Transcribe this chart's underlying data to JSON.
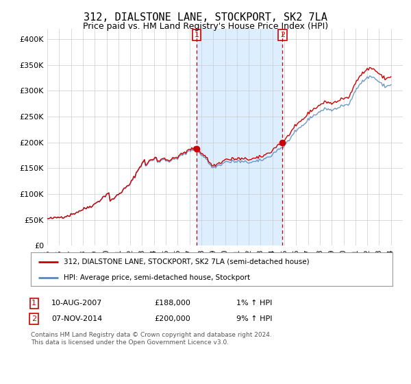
{
  "title": "312, DIALSTONE LANE, STOCKPORT, SK2 7LA",
  "subtitle": "Price paid vs. HM Land Registry's House Price Index (HPI)",
  "ylabel_ticks": [
    0,
    50000,
    100000,
    150000,
    200000,
    250000,
    300000,
    350000,
    400000
  ],
  "ylabel_labels": [
    "£0",
    "£50K",
    "£100K",
    "£150K",
    "£200K",
    "£250K",
    "£300K",
    "£350K",
    "£400K"
  ],
  "ylim": [
    0,
    420000
  ],
  "xlim_start": 1995,
  "xlim_end": 2025,
  "hpi_base": [
    [
      1995.0,
      52000
    ],
    [
      1995.1,
      52500
    ],
    [
      1995.2,
      52200
    ],
    [
      1995.3,
      52800
    ],
    [
      1995.4,
      53000
    ],
    [
      1995.5,
      53500
    ],
    [
      1995.6,
      53200
    ],
    [
      1995.7,
      54000
    ],
    [
      1995.8,
      54500
    ],
    [
      1995.9,
      54800
    ],
    [
      1996.0,
      55000
    ],
    [
      1996.1,
      55500
    ],
    [
      1996.2,
      55800
    ],
    [
      1996.3,
      56000
    ],
    [
      1996.4,
      56500
    ],
    [
      1996.5,
      57000
    ],
    [
      1996.6,
      57500
    ],
    [
      1996.7,
      58000
    ],
    [
      1996.8,
      58500
    ],
    [
      1996.9,
      59000
    ],
    [
      1997.0,
      60000
    ],
    [
      1997.1,
      61000
    ],
    [
      1997.2,
      62000
    ],
    [
      1997.3,
      63000
    ],
    [
      1997.4,
      64000
    ],
    [
      1997.5,
      65000
    ],
    [
      1997.6,
      66000
    ],
    [
      1997.7,
      67000
    ],
    [
      1997.8,
      68000
    ],
    [
      1997.9,
      69000
    ],
    [
      1998.0,
      70000
    ],
    [
      1998.1,
      71000
    ],
    [
      1998.2,
      72000
    ],
    [
      1998.3,
      73000
    ],
    [
      1998.4,
      74000
    ],
    [
      1998.5,
      75000
    ],
    [
      1998.6,
      76000
    ],
    [
      1998.7,
      77000
    ],
    [
      1998.8,
      78000
    ],
    [
      1998.9,
      79000
    ],
    [
      1999.0,
      80000
    ],
    [
      1999.1,
      82000
    ],
    [
      1999.2,
      84000
    ],
    [
      1999.3,
      86000
    ],
    [
      1999.4,
      87000
    ],
    [
      1999.5,
      89000
    ],
    [
      1999.6,
      91000
    ],
    [
      1999.7,
      93000
    ],
    [
      1999.8,
      95000
    ],
    [
      1999.9,
      97000
    ],
    [
      2000.0,
      99000
    ],
    [
      2000.1,
      101000
    ],
    [
      2000.2,
      103000
    ],
    [
      2000.3,
      85000
    ],
    [
      2000.4,
      87000
    ],
    [
      2000.5,
      89000
    ],
    [
      2000.6,
      91000
    ],
    [
      2000.7,
      93000
    ],
    [
      2000.8,
      95000
    ],
    [
      2000.9,
      97000
    ],
    [
      2001.0,
      99000
    ],
    [
      2001.1,
      101000
    ],
    [
      2001.2,
      103000
    ],
    [
      2001.3,
      105000
    ],
    [
      2001.4,
      107000
    ],
    [
      2001.5,
      109000
    ],
    [
      2001.6,
      111000
    ],
    [
      2001.7,
      113000
    ],
    [
      2001.8,
      115000
    ],
    [
      2001.9,
      117000
    ],
    [
      2002.0,
      119000
    ],
    [
      2002.1,
      123000
    ],
    [
      2002.2,
      127000
    ],
    [
      2002.3,
      131000
    ],
    [
      2002.4,
      135000
    ],
    [
      2002.5,
      139000
    ],
    [
      2002.6,
      143000
    ],
    [
      2002.7,
      147000
    ],
    [
      2002.8,
      151000
    ],
    [
      2002.9,
      155000
    ],
    [
      2003.0,
      159000
    ],
    [
      2003.1,
      161000
    ],
    [
      2003.2,
      163000
    ],
    [
      2003.3,
      155000
    ],
    [
      2003.4,
      157000
    ],
    [
      2003.5,
      160000
    ],
    [
      2003.6,
      162000
    ],
    [
      2003.7,
      164000
    ],
    [
      2003.8,
      166000
    ],
    [
      2003.9,
      164000
    ],
    [
      2004.0,
      166000
    ],
    [
      2004.1,
      168000
    ],
    [
      2004.2,
      170000
    ],
    [
      2004.3,
      162000
    ],
    [
      2004.4,
      163000
    ],
    [
      2004.5,
      164000
    ],
    [
      2004.6,
      165000
    ],
    [
      2004.7,
      166000
    ],
    [
      2004.8,
      167000
    ],
    [
      2004.9,
      168000
    ],
    [
      2005.0,
      166000
    ],
    [
      2005.1,
      165000
    ],
    [
      2005.2,
      164000
    ],
    [
      2005.3,
      163000
    ],
    [
      2005.4,
      164000
    ],
    [
      2005.5,
      165000
    ],
    [
      2005.6,
      166000
    ],
    [
      2005.7,
      167000
    ],
    [
      2005.8,
      168000
    ],
    [
      2005.9,
      169000
    ],
    [
      2006.0,
      170000
    ],
    [
      2006.1,
      172000
    ],
    [
      2006.2,
      174000
    ],
    [
      2006.3,
      173000
    ],
    [
      2006.4,
      175000
    ],
    [
      2006.5,
      177000
    ],
    [
      2006.6,
      179000
    ],
    [
      2006.7,
      178000
    ],
    [
      2006.8,
      180000
    ],
    [
      2006.9,
      182000
    ],
    [
      2007.0,
      183000
    ],
    [
      2007.1,
      184000
    ],
    [
      2007.2,
      185000
    ],
    [
      2007.3,
      186000
    ],
    [
      2007.4,
      187000
    ],
    [
      2007.5,
      186000
    ],
    [
      2007.6,
      185000
    ],
    [
      2007.7,
      183000
    ],
    [
      2007.8,
      181000
    ],
    [
      2007.9,
      179000
    ],
    [
      2008.0,
      177000
    ],
    [
      2008.1,
      175000
    ],
    [
      2008.2,
      173000
    ],
    [
      2008.3,
      171000
    ],
    [
      2008.4,
      169000
    ],
    [
      2008.5,
      165000
    ],
    [
      2008.6,
      161000
    ],
    [
      2008.7,
      158000
    ],
    [
      2008.8,
      155000
    ],
    [
      2008.9,
      153000
    ],
    [
      2009.0,
      151000
    ],
    [
      2009.1,
      152000
    ],
    [
      2009.2,
      153000
    ],
    [
      2009.3,
      154000
    ],
    [
      2009.4,
      155000
    ],
    [
      2009.5,
      156000
    ],
    [
      2009.6,
      157000
    ],
    [
      2009.7,
      158000
    ],
    [
      2009.8,
      159000
    ],
    [
      2009.9,
      160000
    ],
    [
      2010.0,
      162000
    ],
    [
      2010.1,
      163000
    ],
    [
      2010.2,
      164000
    ],
    [
      2010.3,
      162000
    ],
    [
      2010.4,
      161000
    ],
    [
      2010.5,
      162000
    ],
    [
      2010.6,
      163000
    ],
    [
      2010.7,
      164000
    ],
    [
      2010.8,
      163000
    ],
    [
      2010.9,
      162000
    ],
    [
      2011.0,
      163000
    ],
    [
      2011.1,
      164000
    ],
    [
      2011.2,
      163000
    ],
    [
      2011.3,
      162000
    ],
    [
      2011.4,
      163000
    ],
    [
      2011.5,
      162000
    ],
    [
      2011.6,
      161000
    ],
    [
      2011.7,
      162000
    ],
    [
      2011.8,
      163000
    ],
    [
      2011.9,
      162000
    ],
    [
      2012.0,
      161000
    ],
    [
      2012.1,
      162000
    ],
    [
      2012.2,
      161000
    ],
    [
      2012.3,
      162000
    ],
    [
      2012.4,
      163000
    ],
    [
      2012.5,
      162000
    ],
    [
      2012.6,
      163000
    ],
    [
      2012.7,
      164000
    ],
    [
      2012.8,
      163000
    ],
    [
      2012.9,
      164000
    ],
    [
      2013.0,
      165000
    ],
    [
      2013.1,
      166000
    ],
    [
      2013.2,
      167000
    ],
    [
      2013.3,
      168000
    ],
    [
      2013.4,
      169000
    ],
    [
      2013.5,
      170000
    ],
    [
      2013.6,
      171000
    ],
    [
      2013.7,
      172000
    ],
    [
      2013.8,
      173000
    ],
    [
      2013.9,
      175000
    ],
    [
      2014.0,
      177000
    ],
    [
      2014.1,
      179000
    ],
    [
      2014.2,
      181000
    ],
    [
      2014.3,
      183000
    ],
    [
      2014.4,
      185000
    ],
    [
      2014.5,
      187000
    ],
    [
      2014.6,
      188000
    ],
    [
      2014.7,
      189000
    ],
    [
      2014.8,
      190000
    ],
    [
      2014.9,
      191000
    ],
    [
      2015.0,
      193000
    ],
    [
      2015.1,
      196000
    ],
    [
      2015.2,
      199000
    ],
    [
      2015.3,
      202000
    ],
    [
      2015.4,
      205000
    ],
    [
      2015.5,
      208000
    ],
    [
      2015.6,
      211000
    ],
    [
      2015.7,
      214000
    ],
    [
      2015.8,
      216000
    ],
    [
      2015.9,
      218000
    ],
    [
      2016.0,
      220000
    ],
    [
      2016.1,
      223000
    ],
    [
      2016.2,
      226000
    ],
    [
      2016.3,
      228000
    ],
    [
      2016.4,
      230000
    ],
    [
      2016.5,
      232000
    ],
    [
      2016.6,
      234000
    ],
    [
      2016.7,
      236000
    ],
    [
      2016.8,
      238000
    ],
    [
      2016.9,
      240000
    ],
    [
      2017.0,
      243000
    ],
    [
      2017.1,
      246000
    ],
    [
      2017.2,
      249000
    ],
    [
      2017.3,
      250000
    ],
    [
      2017.4,
      251000
    ],
    [
      2017.5,
      252000
    ],
    [
      2017.6,
      253000
    ],
    [
      2017.7,
      255000
    ],
    [
      2017.8,
      257000
    ],
    [
      2017.9,
      258000
    ],
    [
      2018.0,
      260000
    ],
    [
      2018.1,
      261000
    ],
    [
      2018.2,
      262000
    ],
    [
      2018.3,
      263000
    ],
    [
      2018.4,
      264000
    ],
    [
      2018.5,
      265000
    ],
    [
      2018.6,
      266000
    ],
    [
      2018.7,
      265000
    ],
    [
      2018.8,
      264000
    ],
    [
      2018.9,
      263000
    ],
    [
      2019.0,
      262000
    ],
    [
      2019.1,
      263000
    ],
    [
      2019.2,
      264000
    ],
    [
      2019.3,
      265000
    ],
    [
      2019.4,
      266000
    ],
    [
      2019.5,
      267000
    ],
    [
      2019.6,
      268000
    ],
    [
      2019.7,
      269000
    ],
    [
      2019.8,
      270000
    ],
    [
      2019.9,
      271000
    ],
    [
      2020.0,
      272000
    ],
    [
      2020.1,
      271000
    ],
    [
      2020.2,
      270000
    ],
    [
      2020.3,
      272000
    ],
    [
      2020.4,
      274000
    ],
    [
      2020.5,
      276000
    ],
    [
      2020.6,
      280000
    ],
    [
      2020.7,
      285000
    ],
    [
      2020.8,
      290000
    ],
    [
      2020.9,
      295000
    ],
    [
      2021.0,
      300000
    ],
    [
      2021.1,
      305000
    ],
    [
      2021.2,
      310000
    ],
    [
      2021.3,
      312000
    ],
    [
      2021.4,
      314000
    ],
    [
      2021.5,
      316000
    ],
    [
      2021.6,
      318000
    ],
    [
      2021.7,
      320000
    ],
    [
      2021.8,
      322000
    ],
    [
      2021.9,
      323000
    ],
    [
      2022.0,
      325000
    ],
    [
      2022.1,
      326000
    ],
    [
      2022.2,
      327000
    ],
    [
      2022.3,
      328000
    ],
    [
      2022.4,
      327000
    ],
    [
      2022.5,
      326000
    ],
    [
      2022.6,
      325000
    ],
    [
      2022.7,
      323000
    ],
    [
      2022.8,
      321000
    ],
    [
      2022.9,
      319000
    ],
    [
      2023.0,
      317000
    ],
    [
      2023.1,
      315000
    ],
    [
      2023.2,
      313000
    ],
    [
      2023.3,
      311000
    ],
    [
      2023.4,
      310000
    ],
    [
      2023.5,
      309000
    ],
    [
      2023.6,
      308000
    ],
    [
      2023.7,
      309000
    ],
    [
      2023.8,
      310000
    ],
    [
      2023.9,
      311000
    ],
    [
      2024.0,
      312000
    ]
  ],
  "sale1_year": 2007.6,
  "sale1_price": 188000,
  "sale2_year": 2014.85,
  "sale2_price": 200000,
  "red_line_color": "#cc0000",
  "blue_line_color": "#5588bb",
  "shade_color": "#ddeeff",
  "vline_color": "#cc0000",
  "event1_date": "10-AUG-2007",
  "event1_price": "£188,000",
  "event1_hpi": "1% ↑ HPI",
  "event2_date": "07-NOV-2014",
  "event2_price": "£200,000",
  "event2_hpi": "9% ↑ HPI",
  "legend1": "312, DIALSTONE LANE, STOCKPORT, SK2 7LA (semi-detached house)",
  "legend2": "HPI: Average price, semi-detached house, Stockport",
  "footnote": "Contains HM Land Registry data © Crown copyright and database right 2024.\nThis data is licensed under the Open Government Licence v3.0.",
  "bg_color": "#ffffff",
  "grid_color": "#cccccc"
}
